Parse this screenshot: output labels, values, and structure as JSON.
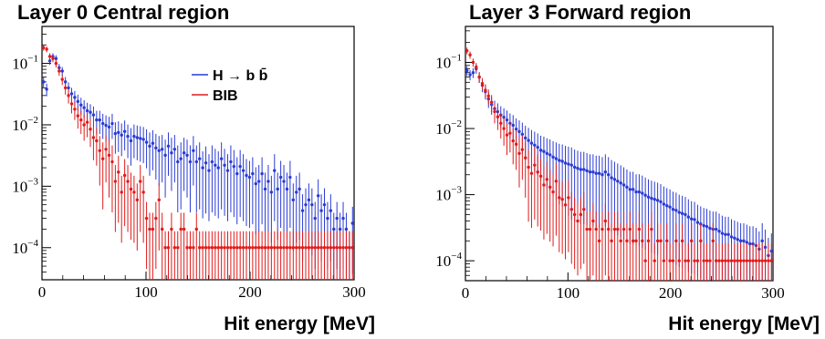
{
  "chart_data": [
    {
      "type": "scatter",
      "title": "Layer 0 Central region",
      "xlabel": "Hit energy [MeV]",
      "ylabel": "",
      "xlim": [
        0,
        300
      ],
      "ylim": [
        3e-05,
        0.4
      ],
      "yscale": "log",
      "xticks": [
        0,
        100,
        200,
        300
      ],
      "yticks": [
        {
          "base": "10",
          "exp": "−1",
          "value": 0.1
        },
        {
          "base": "10",
          "exp": "−2",
          "value": 0.01
        },
        {
          "base": "10",
          "exp": "−3",
          "value": 0.001
        },
        {
          "base": "10",
          "exp": "−4",
          "value": 0.0001
        }
      ],
      "legend": [
        {
          "label": "H → b b̄",
          "color": "#2a3bd4"
        },
        {
          "label": "BIB",
          "color": "#e01b1b"
        }
      ],
      "series": [
        {
          "name": "H → b b̄",
          "color": "#2a3bd4",
          "x": [
            1.5,
            4.5,
            7.5,
            10.5,
            13.5,
            16.5,
            19.5,
            22.5,
            25.5,
            28.5,
            31.5,
            34.5,
            37.5,
            40.5,
            43.5,
            46.5,
            49.5,
            52.5,
            55.5,
            58.5,
            61.5,
            64.5,
            67.5,
            70.5,
            73.5,
            76.5,
            79.5,
            82.5,
            85.5,
            88.5,
            91.5,
            94.5,
            97.5,
            100.5,
            103.5,
            106.5,
            109.5,
            112.5,
            115.5,
            118.5,
            121.5,
            124.5,
            127.5,
            130.5,
            133.5,
            136.5,
            139.5,
            142.5,
            145.5,
            148.5,
            151.5,
            154.5,
            157.5,
            160.5,
            163.5,
            166.5,
            169.5,
            172.5,
            175.5,
            178.5,
            181.5,
            184.5,
            187.5,
            190.5,
            193.5,
            196.5,
            199.5,
            202.5,
            205.5,
            208.5,
            211.5,
            214.5,
            217.5,
            220.5,
            223.5,
            226.5,
            229.5,
            232.5,
            235.5,
            238.5,
            241.5,
            244.5,
            247.5,
            250.5,
            253.5,
            256.5,
            259.5,
            262.5,
            265.5,
            268.5,
            271.5,
            274.5,
            277.5,
            280.5,
            283.5,
            286.5,
            289.5,
            292.5,
            295.5,
            298.5
          ],
          "y": [
            0.05,
            0.038,
            0.11,
            0.13,
            0.12,
            0.085,
            0.075,
            0.05,
            0.04,
            0.032,
            0.028,
            0.024,
            0.021,
            0.019,
            0.017,
            0.016,
            0.0145,
            0.012,
            0.012,
            0.0105,
            0.0098,
            0.0092,
            0.0105,
            0.0072,
            0.0075,
            0.0068,
            0.0078,
            0.0065,
            0.0055,
            0.0065,
            0.0062,
            0.006,
            0.0058,
            0.0052,
            0.0045,
            0.005,
            0.0042,
            0.0038,
            0.004,
            0.0032,
            0.0045,
            0.0035,
            0.004,
            0.0025,
            0.0028,
            0.0035,
            0.0032,
            0.0025,
            0.0038,
            0.0025,
            0.0028,
            0.002,
            0.0024,
            0.0018,
            0.0025,
            0.0022,
            0.002,
            0.0028,
            0.0022,
            0.0018,
            0.0025,
            0.0021,
            0.0016,
            0.0021,
            0.0018,
            0.0015,
            0.0014,
            0.0016,
            0.0011,
            0.0012,
            0.0016,
            0.0009,
            0.0012,
            0.0008,
            0.0018,
            0.0009,
            0.0014,
            0.0012,
            0.0009,
            0.0014,
            0.0006,
            0.0008,
            0.0009,
            0.0004,
            0.0005,
            0.0006,
            0.0005,
            0.0003,
            0.0007,
            0.0004,
            0.0005,
            0.0003,
            0.0004,
            0.0002,
            0.0003,
            0.0002,
            0.0003,
            0.0002,
            0.0001,
            0.00025
          ]
        },
        {
          "name": "BIB",
          "color": "#e01b1b",
          "x": [
            1.5,
            4.5,
            7.5,
            10.5,
            13.5,
            16.5,
            19.5,
            22.5,
            25.5,
            28.5,
            31.5,
            34.5,
            37.5,
            40.5,
            43.5,
            46.5,
            49.5,
            52.5,
            55.5,
            58.5,
            61.5,
            64.5,
            67.5,
            70.5,
            73.5,
            76.5,
            79.5,
            82.5,
            85.5,
            88.5,
            91.5,
            94.5,
            97.5,
            100.5,
            103.5,
            106.5,
            109.5,
            112.5,
            115.5,
            118.5,
            121.5,
            124.5,
            127.5,
            130.5,
            133.5,
            136.5,
            139.5,
            142.5,
            145.5,
            148.5,
            151.5,
            154.5,
            157.5,
            160.5,
            163.5,
            166.5,
            169.5,
            172.5,
            175.5,
            178.5,
            181.5,
            184.5,
            187.5,
            190.5,
            193.5,
            196.5,
            199.5,
            202.5,
            205.5,
            208.5,
            211.5,
            214.5,
            217.5,
            220.5,
            223.5,
            226.5,
            229.5,
            232.5,
            235.5,
            238.5,
            241.5,
            244.5,
            247.5,
            250.5,
            253.5,
            256.5,
            259.5,
            262.5,
            265.5,
            268.5,
            271.5,
            274.5,
            277.5,
            280.5,
            283.5,
            286.5,
            289.5,
            292.5,
            295.5,
            298.5
          ],
          "y": [
            0.18,
            0.17,
            0.13,
            0.12,
            0.1,
            0.075,
            0.055,
            0.04,
            0.03,
            0.022,
            0.018,
            0.014,
            0.012,
            0.01,
            0.011,
            0.0085,
            0.0062,
            0.0055,
            0.0038,
            0.0028,
            0.004,
            0.0032,
            0.0025,
            0.0012,
            0.0017,
            0.0008,
            0.0015,
            0.0012,
            0.0009,
            0.0008,
            0.0006,
            0.0012,
            0.0008,
            0.0003,
            0.0002,
            0.0002,
            0.0003,
            0.0006,
            0.0002,
            0.0001,
            0.0001,
            0.0002,
            0.0001,
            0.0001,
            0.0002,
            0.0002,
            0.0001,
            0.0001,
            0.0001,
            0.0002,
            0.0001,
            0.0001,
            0.0001,
            0.0001,
            0.0001,
            0.0001,
            0.0001,
            0.0001,
            0.0001,
            0.0001,
            0.0001,
            0.0001,
            0.0001,
            0.0001,
            0.0001,
            0.0001,
            0.0001,
            0.0001,
            0.0001,
            0.0001,
            0.0001,
            0.0001,
            0.0001,
            0.0001,
            0.0001,
            0.0001,
            0.0001,
            0.0001,
            0.0001,
            0.0001,
            0.0001,
            0.0001,
            0.0001,
            0.0001,
            0.0001,
            0.0001,
            0.0001,
            0.0001,
            0.0001,
            0.0001,
            0.0001,
            0.0001,
            0.0001,
            0.0001,
            0.0001,
            0.0001,
            0.0001,
            0.0001,
            0.0001,
            0.0001
          ]
        }
      ]
    },
    {
      "type": "scatter",
      "title": "Layer 3 Forward region",
      "xlabel": "Hit energy [MeV]",
      "ylabel": "",
      "xlim": [
        0,
        300
      ],
      "ylim": [
        5e-05,
        0.35
      ],
      "yscale": "log",
      "xticks": [
        0,
        100,
        200,
        300
      ],
      "yticks": [
        {
          "base": "10",
          "exp": "−1",
          "value": 0.1
        },
        {
          "base": "10",
          "exp": "−2",
          "value": 0.01
        },
        {
          "base": "10",
          "exp": "−3",
          "value": 0.001
        },
        {
          "base": "10",
          "exp": "−4",
          "value": 0.0001
        }
      ],
      "legend": [],
      "series": [
        {
          "name": "H → b b̄",
          "color": "#2a3bd4",
          "x": [
            1.5,
            4.5,
            7.5,
            10.5,
            13.5,
            16.5,
            19.5,
            22.5,
            25.5,
            28.5,
            31.5,
            34.5,
            37.5,
            40.5,
            43.5,
            46.5,
            49.5,
            52.5,
            55.5,
            58.5,
            61.5,
            64.5,
            67.5,
            70.5,
            73.5,
            76.5,
            79.5,
            82.5,
            85.5,
            88.5,
            91.5,
            94.5,
            97.5,
            100.5,
            103.5,
            106.5,
            109.5,
            112.5,
            115.5,
            118.5,
            121.5,
            124.5,
            127.5,
            130.5,
            133.5,
            136.5,
            139.5,
            142.5,
            145.5,
            148.5,
            151.5,
            154.5,
            157.5,
            160.5,
            163.5,
            166.5,
            169.5,
            172.5,
            175.5,
            178.5,
            181.5,
            184.5,
            187.5,
            190.5,
            193.5,
            196.5,
            199.5,
            202.5,
            205.5,
            208.5,
            211.5,
            214.5,
            217.5,
            220.5,
            223.5,
            226.5,
            229.5,
            232.5,
            235.5,
            238.5,
            241.5,
            244.5,
            247.5,
            250.5,
            253.5,
            256.5,
            259.5,
            262.5,
            265.5,
            268.5,
            271.5,
            274.5,
            277.5,
            280.5,
            283.5,
            286.5,
            289.5,
            292.5,
            295.5,
            298.5
          ],
          "y": [
            0.075,
            0.065,
            0.07,
            0.08,
            0.06,
            0.045,
            0.036,
            0.028,
            0.023,
            0.02,
            0.018,
            0.016,
            0.0148,
            0.0135,
            0.012,
            0.0112,
            0.0098,
            0.009,
            0.0082,
            0.0072,
            0.0066,
            0.006,
            0.0056,
            0.0052,
            0.0047,
            0.0045,
            0.0042,
            0.004,
            0.0037,
            0.0035,
            0.0033,
            0.0032,
            0.003,
            0.0029,
            0.0028,
            0.0026,
            0.0025,
            0.0024,
            0.0024,
            0.0023,
            0.0022,
            0.0022,
            0.0021,
            0.0021,
            0.002,
            0.0022,
            0.002,
            0.0018,
            0.0017,
            0.0016,
            0.0015,
            0.0014,
            0.0013,
            0.0012,
            0.0012,
            0.0011,
            0.0011,
            0.00105,
            0.00098,
            0.00092,
            0.00088,
            0.00085,
            0.00082,
            0.00078,
            0.00072,
            0.00068,
            0.00065,
            0.0006,
            0.00058,
            0.00054,
            0.00052,
            0.0005,
            0.00046,
            0.00043,
            0.00042,
            0.00038,
            0.00036,
            0.00034,
            0.00033,
            0.00031,
            0.0003,
            0.0003,
            0.00028,
            0.00026,
            0.00025,
            0.00025,
            0.00023,
            0.00022,
            0.00021,
            0.0002,
            0.0002,
            0.00019,
            0.00018,
            0.00018,
            0.00017,
            0.00015,
            0.0002,
            0.00016,
            0.00012,
            0.00014
          ]
        },
        {
          "name": "BIB",
          "color": "#e01b1b",
          "x": [
            1.5,
            4.5,
            7.5,
            10.5,
            13.5,
            16.5,
            19.5,
            22.5,
            25.5,
            28.5,
            31.5,
            34.5,
            37.5,
            40.5,
            43.5,
            46.5,
            49.5,
            52.5,
            55.5,
            58.5,
            61.5,
            64.5,
            67.5,
            70.5,
            73.5,
            76.5,
            79.5,
            82.5,
            85.5,
            88.5,
            91.5,
            94.5,
            97.5,
            100.5,
            103.5,
            106.5,
            109.5,
            112.5,
            115.5,
            118.5,
            121.5,
            124.5,
            127.5,
            130.5,
            133.5,
            136.5,
            139.5,
            142.5,
            145.5,
            148.5,
            151.5,
            154.5,
            157.5,
            160.5,
            163.5,
            166.5,
            169.5,
            172.5,
            175.5,
            178.5,
            181.5,
            184.5,
            187.5,
            190.5,
            193.5,
            196.5,
            199.5,
            202.5,
            205.5,
            208.5,
            211.5,
            214.5,
            217.5,
            220.5,
            223.5,
            226.5,
            229.5,
            232.5,
            235.5,
            238.5,
            241.5,
            244.5,
            247.5,
            250.5,
            253.5,
            256.5,
            259.5,
            262.5,
            265.5,
            268.5,
            271.5,
            274.5,
            277.5,
            280.5,
            283.5,
            286.5,
            289.5,
            292.5,
            295.5,
            298.5
          ],
          "y": [
            0.15,
            0.13,
            0.1,
            0.085,
            0.06,
            0.048,
            0.038,
            0.031,
            0.025,
            0.018,
            0.015,
            0.012,
            0.01,
            0.008,
            0.0085,
            0.0065,
            0.0058,
            0.0042,
            0.0048,
            0.0036,
            0.0026,
            0.0021,
            0.0028,
            0.0022,
            0.0019,
            0.0014,
            0.0017,
            0.0013,
            0.0011,
            0.0016,
            0.0009,
            0.00085,
            0.0007,
            0.0009,
            0.0006,
            0.0005,
            0.0004,
            0.0005,
            0.0006,
            0.0003,
            0.0003,
            0.0004,
            0.0003,
            0.0002,
            0.0003,
            0.0004,
            0.0003,
            0.0002,
            0.0003,
            0.0003,
            0.0002,
            0.0003,
            0.0002,
            0.0003,
            0.0002,
            0.0002,
            0.0003,
            0.0002,
            0.0001,
            0.0002,
            0.0003,
            0.0001,
            0.0002,
            0.0002,
            0.0001,
            0.0002,
            0.0001,
            0.0001,
            0.0002,
            0.0001,
            0.0002,
            0.0001,
            0.0001,
            0.0002,
            0.0001,
            0.0001,
            0.0002,
            0.0001,
            0.0001,
            0.0001,
            0.0002,
            0.0001,
            0.0001,
            0.0001,
            0.0001,
            0.0001,
            0.0001,
            0.0001,
            0.0001,
            0.0001,
            0.0001,
            0.0001,
            0.0001,
            0.0001,
            0.0001,
            0.0001,
            0.0001,
            0.0001,
            0.0001,
            0.0001
          ]
        }
      ]
    }
  ]
}
